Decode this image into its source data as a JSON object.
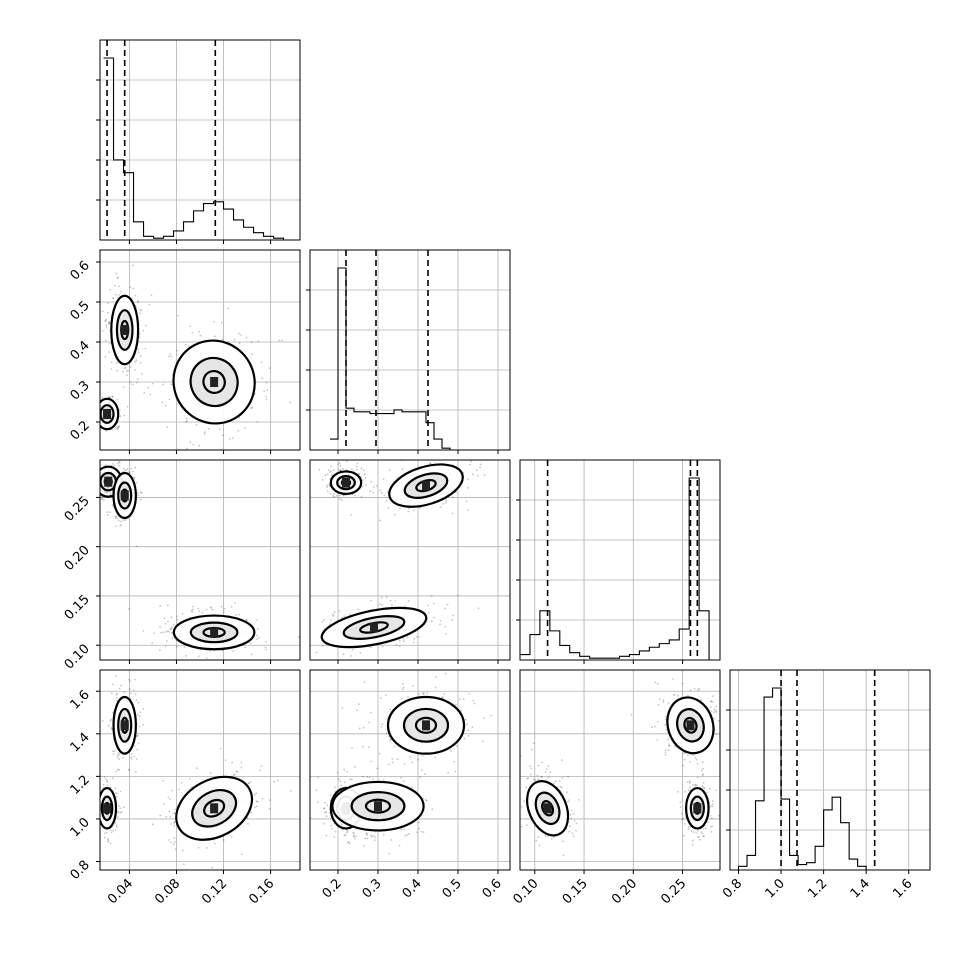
{
  "chart_data": {
    "type": "corner",
    "grid": true,
    "parameters": [
      {
        "index": 0,
        "range": [
          0.015,
          0.185
        ],
        "ticks": [
          0.04,
          0.08,
          0.12,
          0.16
        ],
        "tick_labels": [
          "0.04",
          "0.08",
          "0.12",
          "0.16"
        ]
      },
      {
        "index": 1,
        "range": [
          0.13,
          0.63
        ],
        "ticks": [
          0.2,
          0.3,
          0.4,
          0.5,
          0.6
        ],
        "tick_labels": [
          "0.2",
          "0.3",
          "0.4",
          "0.5",
          "0.6"
        ]
      },
      {
        "index": 2,
        "range": [
          0.085,
          0.288
        ],
        "ticks": [
          0.1,
          0.15,
          0.2,
          0.25
        ],
        "tick_labels": [
          "0.10",
          "0.15",
          "0.20",
          "0.25"
        ]
      },
      {
        "index": 3,
        "range": [
          0.76,
          1.7
        ],
        "ticks": [
          0.8,
          1.0,
          1.2,
          1.4,
          1.6
        ],
        "tick_labels": [
          "0.8",
          "1.0",
          "1.2",
          "1.4",
          "1.6"
        ]
      }
    ],
    "marginals": [
      {
        "param": 0,
        "bin_edges_start": 0.018,
        "bin_width": 0.0085,
        "counts": [
          1.0,
          0.44,
          0.37,
          0.1,
          0.02,
          0.01,
          0.02,
          0.05,
          0.1,
          0.16,
          0.2,
          0.21,
          0.17,
          0.11,
          0.07,
          0.04,
          0.02,
          0.01,
          0.0,
          0.0
        ],
        "quantiles": [
          0.021,
          0.036,
          0.113
        ]
      },
      {
        "param": 1,
        "bin_edges_start": 0.18,
        "bin_width": 0.02,
        "counts": [
          0.06,
          1.0,
          0.23,
          0.21,
          0.21,
          0.2,
          0.2,
          0.2,
          0.22,
          0.21,
          0.21,
          0.21,
          0.15,
          0.06,
          0.01,
          0.0
        ],
        "quantiles": [
          0.22,
          0.295,
          0.425
        ]
      },
      {
        "param": 2,
        "bin_edges_start": 0.085,
        "bin_width": 0.0101,
        "counts": [
          0.03,
          0.14,
          0.27,
          0.16,
          0.08,
          0.04,
          0.02,
          0.01,
          0.01,
          0.01,
          0.02,
          0.03,
          0.05,
          0.07,
          0.09,
          0.11,
          0.17,
          1.0,
          0.27,
          0.0
        ],
        "quantiles": [
          0.113,
          0.258,
          0.265
        ]
      },
      {
        "param": 3,
        "bin_edges_start": 0.76,
        "bin_width": 0.04,
        "counts": [
          0.0,
          0.02,
          0.08,
          0.38,
          0.95,
          1.0,
          0.39,
          0.08,
          0.03,
          0.04,
          0.13,
          0.33,
          0.4,
          0.26,
          0.06,
          0.02,
          0.0,
          0.0,
          0.0
        ],
        "quantiles": [
          1.0,
          1.075,
          1.44
        ]
      }
    ],
    "joint": [
      {
        "x": 0,
        "y": 1,
        "clusters": [
          {
            "mean": [
              0.021,
              0.22
            ],
            "sd": [
              0.005,
              0.02
            ],
            "rot": 0
          },
          {
            "mean": [
              0.036,
              0.43
            ],
            "sd": [
              0.006,
              0.045
            ],
            "rot": 0
          },
          {
            "mean": [
              0.112,
              0.3
            ],
            "sd": [
              0.018,
              0.055
            ],
            "rot": -0.5
          }
        ]
      },
      {
        "x": 0,
        "y": 2,
        "clusters": [
          {
            "mean": [
              0.022,
              0.266
            ],
            "sd": [
              0.006,
              0.008
            ],
            "rot": 0
          },
          {
            "mean": [
              0.036,
              0.252
            ],
            "sd": [
              0.005,
              0.012
            ],
            "rot": 0
          },
          {
            "mean": [
              0.112,
              0.113
            ],
            "sd": [
              0.018,
              0.009
            ],
            "rot": 0
          }
        ]
      },
      {
        "x": 0,
        "y": 3,
        "clusters": [
          {
            "mean": [
              0.021,
              1.05
            ],
            "sd": [
              0.004,
              0.05
            ],
            "rot": 0
          },
          {
            "mean": [
              0.036,
              1.44
            ],
            "sd": [
              0.005,
              0.07
            ],
            "rot": 0
          },
          {
            "mean": [
              0.112,
              1.05
            ],
            "sd": [
              0.018,
              0.07
            ],
            "rot": -0.5
          }
        ]
      },
      {
        "x": 1,
        "y": 2,
        "clusters": [
          {
            "mean": [
              0.22,
              0.265
            ],
            "sd": [
              0.02,
              0.006
            ],
            "rot": 0
          },
          {
            "mean": [
              0.42,
              0.262
            ],
            "sd": [
              0.05,
              0.01
            ],
            "rot": -0.3
          },
          {
            "mean": [
              0.29,
              0.118
            ],
            "sd": [
              0.07,
              0.009
            ],
            "rot": -0.2
          }
        ]
      },
      {
        "x": 1,
        "y": 3,
        "clusters": [
          {
            "mean": [
              0.22,
              1.05
            ],
            "sd": [
              0.02,
              0.05
            ],
            "rot": 0
          },
          {
            "mean": [
              0.3,
              1.06
            ],
            "sd": [
              0.06,
              0.06
            ],
            "rot": 0
          },
          {
            "mean": [
              0.42,
              1.44
            ],
            "sd": [
              0.05,
              0.07
            ],
            "rot": 0
          }
        ]
      },
      {
        "x": 2,
        "y": 3,
        "clusters": [
          {
            "mean": [
              0.113,
              1.05
            ],
            "sd": [
              0.01,
              0.07
            ],
            "rot": -0.4
          },
          {
            "mean": [
              0.258,
              1.44
            ],
            "sd": [
              0.012,
              0.07
            ],
            "rot": -0.3
          },
          {
            "mean": [
              0.265,
              1.05
            ],
            "sd": [
              0.006,
              0.05
            ],
            "rot": 0
          }
        ]
      }
    ]
  }
}
